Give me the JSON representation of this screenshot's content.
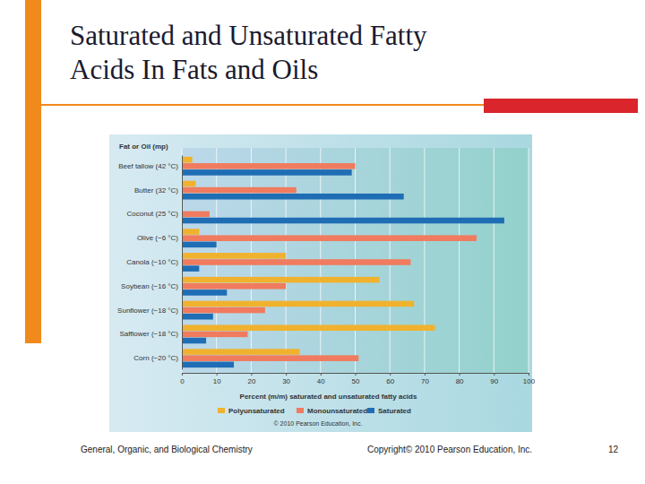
{
  "slide": {
    "footer": "General, Organic, and Biological Chemistry",
    "copyright": "Copyright© 2010 Pearson Education, Inc.",
    "page": "12"
  },
  "chart_data": {
    "type": "bar",
    "orientation": "horizontal",
    "title": "Saturated and Unsaturated Fatty\nAcids In Fats and Oils",
    "y_label": "Fat or Oil (mp)",
    "x_label": "Percent (m/m) saturated and unsaturated fatty acids",
    "annotations": [
      "© 2010 Pearson Education, Inc."
    ],
    "categories": [
      "Beef tallow (42 °C)",
      "Butter (32 °C)",
      "Coconut (25 °C)",
      "Olive (−6 °C)",
      "Canola (−10 °C)",
      "Soybean (−16 °C)",
      "Sunflower (−18 °C)",
      "Safflower (−18 °C)",
      "Corn (−20 °C)"
    ],
    "series": [
      {
        "name": "Polyunsaturated",
        "color": "#f0b22e",
        "values": [
          3,
          4,
          0,
          5,
          30,
          57,
          67,
          73,
          34
        ]
      },
      {
        "name": "Monounsaturated",
        "color": "#f07b5e",
        "values": [
          50,
          33,
          8,
          85,
          66,
          30,
          24,
          19,
          51
        ]
      },
      {
        "name": "Saturated",
        "color": "#1f6db4",
        "values": [
          49,
          64,
          93,
          10,
          5,
          13,
          9,
          7,
          15
        ]
      }
    ],
    "xlim": [
      0,
      100
    ],
    "xticks": [
      0,
      10,
      20,
      30,
      40,
      50,
      60,
      70,
      80,
      90,
      100
    ],
    "grid": true,
    "legend": "bottom"
  }
}
